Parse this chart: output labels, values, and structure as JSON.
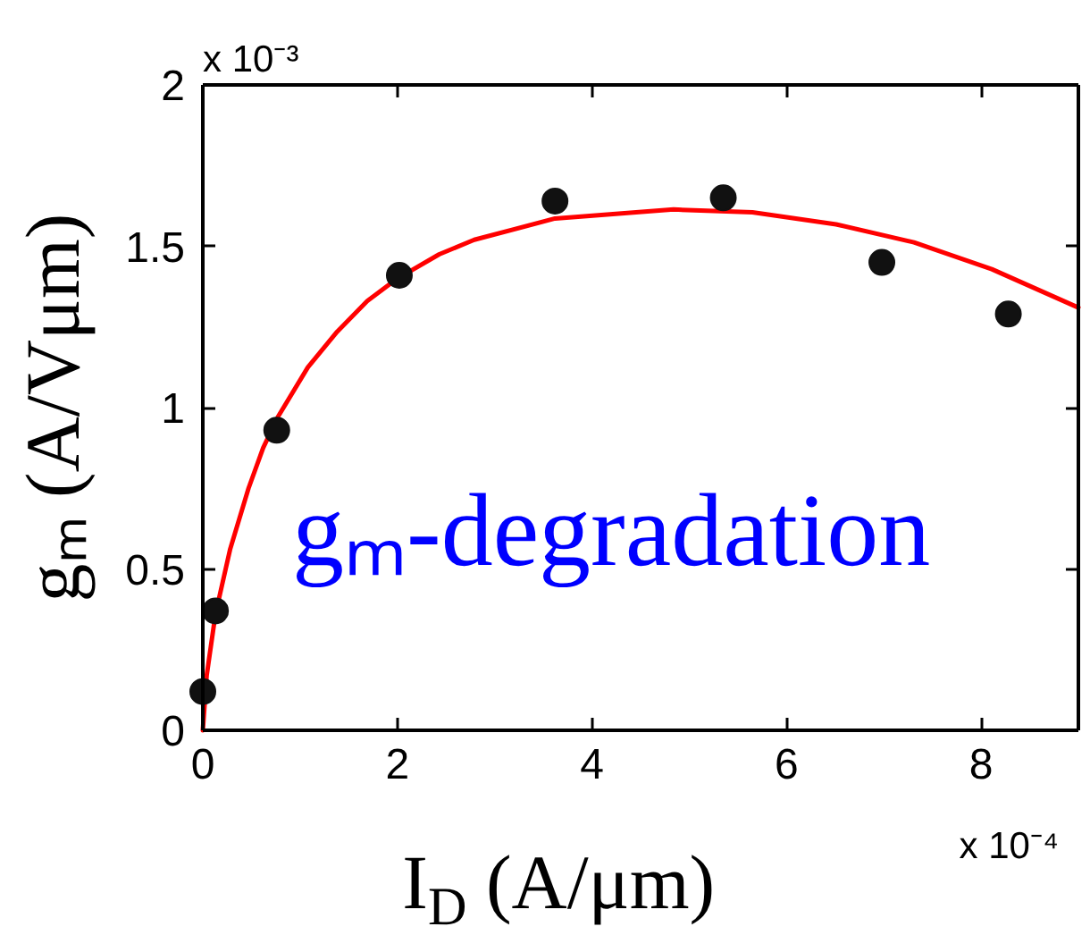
{
  "chart_data": {
    "type": "scatter",
    "xlabel": "I$_{D}$ (A/μm)",
    "ylabel": "gₘ (A/Vμm)",
    "annotations": [
      "x 10⁻³",
      "x 10⁻⁴",
      "gₘ-degradation"
    ],
    "xlim": [
      0,
      9
    ],
    "ylim": [
      0,
      2
    ],
    "xticks": [
      0,
      2,
      4,
      6,
      8
    ],
    "yticks": [
      0,
      0.5,
      1,
      1.5,
      2
    ],
    "series": [
      {
        "type": "line",
        "color": "#ff0000",
        "x": [
          0,
          0.04,
          0.13,
          0.28,
          0.47,
          0.62,
          0.77,
          1.08,
          1.38,
          1.69,
          2.0,
          2.43,
          2.79,
          3.62,
          4.84,
          5.65,
          6.51,
          7.31,
          8.11,
          9
        ],
        "values": [
          0,
          0.17,
          0.36,
          0.56,
          0.75,
          0.875,
          0.97,
          1.125,
          1.235,
          1.33,
          1.4,
          1.475,
          1.52,
          1.586,
          1.614,
          1.605,
          1.568,
          1.512,
          1.429,
          1.31
        ]
      },
      {
        "color": "#111111",
        "marker": "circle",
        "x": [
          0,
          0.13,
          0.76,
          2.02,
          3.62,
          5.35,
          6.98,
          8.28
        ],
        "values": [
          0.12,
          0.37,
          0.93,
          1.41,
          1.64,
          1.65,
          1.45,
          1.29
        ]
      }
    ]
  }
}
